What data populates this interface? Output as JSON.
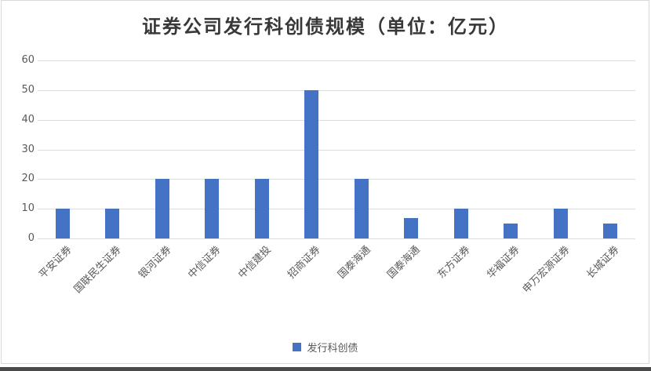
{
  "page": {
    "background_color": "#ffffff",
    "frame_border_color": "#d9d9d9",
    "bottom_bar_color": "#4a4a4a"
  },
  "chart_data": {
    "type": "bar",
    "title": "证券公司发行科创债规模（单位：亿元）",
    "categories": [
      "平安证券",
      "国联民生证券",
      "银河证券",
      "中信证券",
      "中信建投",
      "招商证券",
      "国泰海通",
      "国泰海通",
      "东方证券",
      "华福证券",
      "申万宏源证券",
      "长城证券"
    ],
    "series": [
      {
        "name": "发行科创债",
        "values": [
          10,
          10,
          20,
          20,
          20,
          50,
          20,
          7,
          10,
          5,
          10,
          5
        ]
      }
    ],
    "xlabel": "",
    "ylabel": "",
    "ylim": [
      0,
      60
    ],
    "yticks": [
      0,
      10,
      20,
      30,
      40,
      50,
      60
    ],
    "grid": true,
    "legend_position": "bottom",
    "bar_color": "#4472C4",
    "gridline_color": "#dcdcdc",
    "axis_text_color": "#595959",
    "title_color": "#383838"
  }
}
